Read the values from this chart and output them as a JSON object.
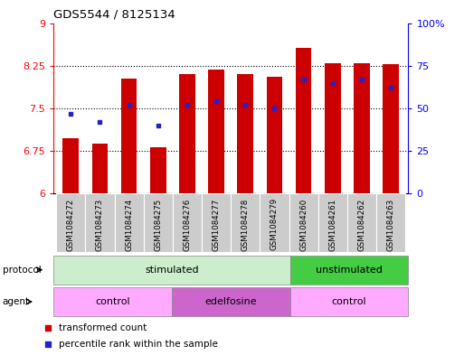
{
  "title": "GDS5544 / 8125134",
  "samples": [
    "GSM1084272",
    "GSM1084273",
    "GSM1084274",
    "GSM1084275",
    "GSM1084276",
    "GSM1084277",
    "GSM1084278",
    "GSM1084279",
    "GSM1084260",
    "GSM1084261",
    "GSM1084262",
    "GSM1084263"
  ],
  "transformed_count": [
    6.97,
    6.87,
    8.02,
    6.82,
    8.1,
    8.18,
    8.1,
    8.05,
    8.57,
    8.3,
    8.3,
    8.27
  ],
  "percentile_rank": [
    47,
    42,
    52,
    40,
    52,
    54,
    52,
    50,
    67,
    65,
    67,
    62
  ],
  "ylim_left": [
    6,
    9
  ],
  "ylim_right": [
    0,
    100
  ],
  "yticks_left": [
    6,
    6.75,
    7.5,
    8.25,
    9
  ],
  "yticks_right": [
    0,
    25,
    50,
    75,
    100
  ],
  "ytick_labels_left": [
    "6",
    "6.75",
    "7.5",
    "8.25",
    "9"
  ],
  "ytick_labels_right": [
    "0",
    "25",
    "50",
    "75",
    "100%"
  ],
  "bar_color": "#cc0000",
  "dot_color": "#2222cc",
  "background_color": "#ffffff",
  "stim_color_light": "#cceecc",
  "stim_color_dark": "#44cc44",
  "agent_color_ctrl": "#ffaaff",
  "agent_color_edel": "#cc66cc",
  "legend_red_label": "transformed count",
  "legend_blue_label": "percentile rank within the sample",
  "bar_width": 0.55
}
